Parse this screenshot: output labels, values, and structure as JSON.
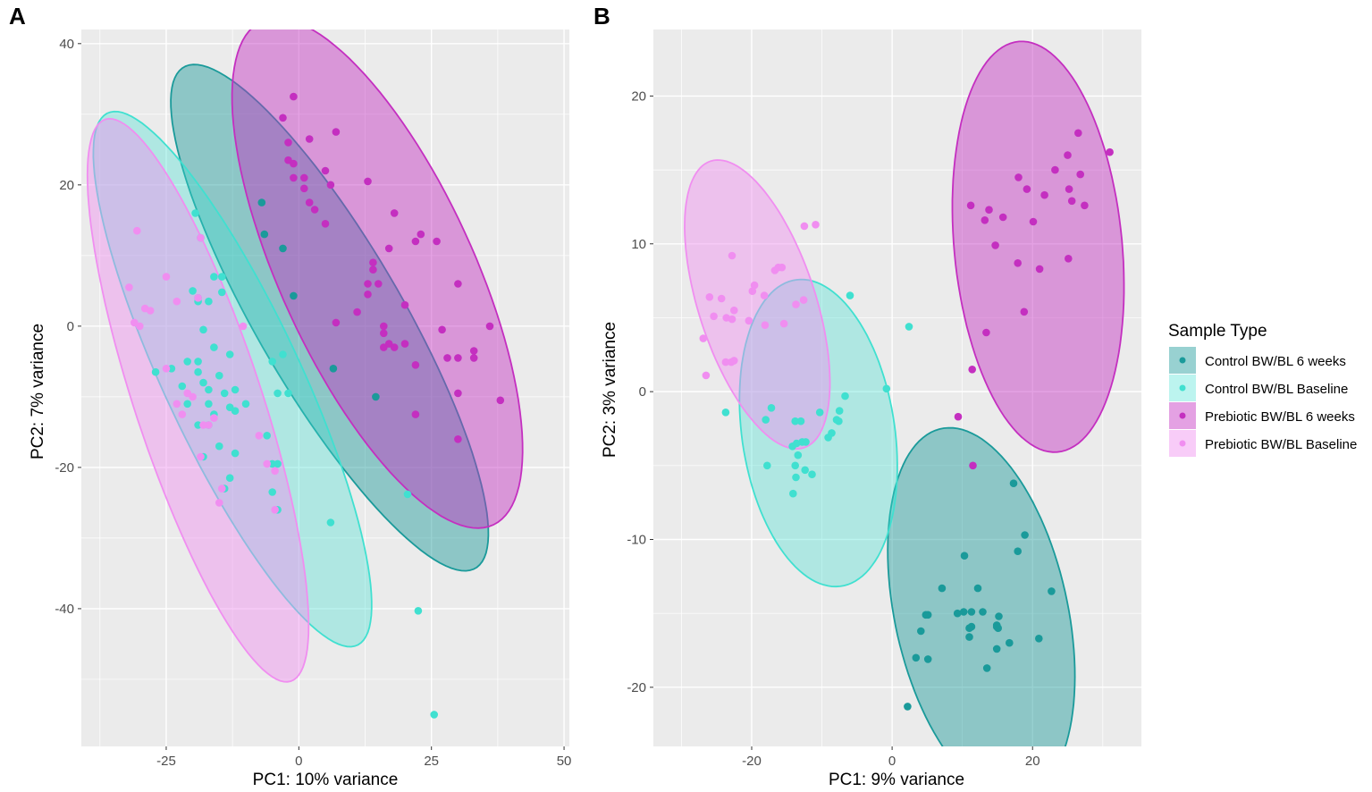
{
  "chart_data": [
    {
      "panel": "A",
      "type": "scatter",
      "xlabel": "PC1: 10% variance",
      "ylabel": "PC2: 7% variance",
      "xlim": [
        -41,
        51
      ],
      "ylim": [
        -59.5,
        42
      ],
      "xticks": [
        -25,
        0,
        25,
        50
      ],
      "yticks": [
        -40,
        -20,
        0,
        20,
        40
      ],
      "xtick_labels": [
        "-25",
        "0",
        "25",
        "50"
      ],
      "ytick_labels": [
        "-40",
        "-20",
        "0",
        "20",
        "40"
      ],
      "series": [
        {
          "name": "Control BW/BL 6 weeks",
          "color": "#1a9a9a",
          "ellipse": {
            "cx": 5.8,
            "cy": 1.2,
            "rx": 45,
            "ry": 12.5,
            "angle": -51
          },
          "points": [
            [
              -7,
              17.5
            ],
            [
              -6.5,
              13
            ],
            [
              -3,
              11
            ],
            [
              -1,
              4.3
            ],
            [
              6.5,
              -6
            ],
            [
              14.5,
              -10
            ]
          ]
        },
        {
          "name": "Control BW/BL Baseline",
          "color": "#40e0d0",
          "ellipse": {
            "cx": -12.5,
            "cy": -7.5,
            "rx": 44.5,
            "ry": 12,
            "angle": -57
          },
          "points": [
            [
              -19.5,
              16
            ],
            [
              -18.5,
              12.5
            ],
            [
              -16,
              7
            ],
            [
              -14.5,
              7
            ],
            [
              -14.5,
              4.8
            ],
            [
              -20,
              5
            ],
            [
              -19,
              4
            ],
            [
              -19,
              3.5
            ],
            [
              -17,
              3.5
            ],
            [
              -18,
              -0.5
            ],
            [
              -16,
              -3
            ],
            [
              -13,
              -4
            ],
            [
              -21,
              -5
            ],
            [
              -19,
              -5
            ],
            [
              -19,
              -6.5
            ],
            [
              -24,
              -6
            ],
            [
              -27,
              -6.5
            ],
            [
              -22,
              -8.5
            ],
            [
              -18,
              -8
            ],
            [
              -15,
              -7
            ],
            [
              -14,
              -9.5
            ],
            [
              -12,
              -9
            ],
            [
              -17,
              -9
            ],
            [
              -21,
              -11
            ],
            [
              -17,
              -11
            ],
            [
              -13,
              -11.5
            ],
            [
              -12,
              -12
            ],
            [
              -10,
              -11
            ],
            [
              -5,
              -5
            ],
            [
              -3,
              -4
            ],
            [
              -4,
              -9.5
            ],
            [
              -2,
              -9.5
            ],
            [
              -6,
              -15.5
            ],
            [
              -5,
              -19.5
            ],
            [
              -4,
              -19.5
            ],
            [
              -5,
              -23.5
            ],
            [
              -4,
              -26
            ],
            [
              -14,
              -23
            ],
            [
              -13,
              -21.5
            ],
            [
              -12,
              -18
            ],
            [
              -15,
              -17
            ],
            [
              -18,
              -18.5
            ],
            [
              -19,
              -14
            ],
            [
              -17,
              -14
            ],
            [
              -16,
              -12.5
            ],
            [
              20.5,
              -23.8
            ],
            [
              6,
              -27.8
            ],
            [
              22.5,
              -40.3
            ],
            [
              25.5,
              -55
            ]
          ]
        },
        {
          "name": "Prebiotic BW/BL 6 weeks",
          "color": "#c42fc0",
          "ellipse": {
            "cx": 14.8,
            "cy": 7.5,
            "rx": 42,
            "ry": 17,
            "angle": -56
          },
          "points": [
            [
              -1,
              32.5
            ],
            [
              -3,
              29.5
            ],
            [
              -2,
              26
            ],
            [
              2,
              26.5
            ],
            [
              7,
              27.5
            ],
            [
              -2,
              23.5
            ],
            [
              -1,
              23
            ],
            [
              1,
              21
            ],
            [
              5,
              22
            ],
            [
              -1,
              21
            ],
            [
              1,
              19.5
            ],
            [
              2,
              17.5
            ],
            [
              3,
              16.5
            ],
            [
              6,
              20
            ],
            [
              5,
              14.5
            ],
            [
              13,
              20.5
            ],
            [
              18,
              16
            ],
            [
              14,
              9
            ],
            [
              14,
              8
            ],
            [
              15,
              6
            ],
            [
              13,
              6
            ],
            [
              13,
              4.5
            ],
            [
              17,
              11
            ],
            [
              11,
              2
            ],
            [
              20,
              3
            ],
            [
              23,
              13
            ],
            [
              22,
              12
            ],
            [
              26,
              12
            ],
            [
              22,
              -5.5
            ],
            [
              16,
              -3
            ],
            [
              17,
              -2.5
            ],
            [
              20,
              -2.5
            ],
            [
              18,
              -3
            ],
            [
              16,
              0
            ],
            [
              16,
              -1
            ],
            [
              7,
              0.5
            ],
            [
              28,
              -4.5
            ],
            [
              30,
              6
            ],
            [
              27,
              -0.5
            ],
            [
              30,
              -4.5
            ],
            [
              33,
              -3.5
            ],
            [
              33,
              -4.5
            ],
            [
              36,
              0
            ],
            [
              38,
              -10.5
            ],
            [
              22,
              -12.5
            ],
            [
              30,
              -9.5
            ],
            [
              30,
              -16
            ]
          ]
        },
        {
          "name": "Prebiotic BW/BL Baseline",
          "color": "#f08ef0",
          "ellipse": {
            "cx": -19,
            "cy": -10.5,
            "rx": 43.5,
            "ry": 11.5,
            "angle": -65.5
          },
          "points": [
            [
              -30.5,
              13.5
            ],
            [
              -18.5,
              12.5
            ],
            [
              -32,
              5.5
            ],
            [
              -25,
              7
            ],
            [
              -23,
              3.5
            ],
            [
              -19,
              4
            ],
            [
              -29,
              2.5
            ],
            [
              -28,
              2.2
            ],
            [
              -31,
              0.5
            ],
            [
              -30,
              0
            ],
            [
              -10.5,
              0
            ],
            [
              -25,
              -6
            ],
            [
              -23,
              -11
            ],
            [
              -22,
              -12.5
            ],
            [
              -20,
              -10
            ],
            [
              -18.5,
              -18.5
            ],
            [
              -17,
              -14
            ],
            [
              -18,
              -14
            ],
            [
              -16,
              -13
            ],
            [
              -21,
              -9.5
            ],
            [
              -14.5,
              -23
            ],
            [
              -15,
              -25
            ],
            [
              -7.5,
              -15.5
            ],
            [
              -6,
              -19.5
            ],
            [
              -4.5,
              -20.5
            ],
            [
              -4.5,
              -26
            ]
          ]
        }
      ]
    },
    {
      "panel": "B",
      "type": "scatter",
      "xlabel": "PC1: 9% variance",
      "ylabel": "PC2: 3% variance",
      "xlim": [
        -34,
        35.5
      ],
      "ylim": [
        -24,
        24.5
      ],
      "xticks": [
        -20,
        0,
        20
      ],
      "yticks": [
        -20,
        -10,
        0,
        10,
        20
      ],
      "xtick_labels": [
        "-20",
        "0",
        "20"
      ],
      "ytick_labels": [
        "-20",
        "-10",
        "0",
        "10",
        "20"
      ],
      "series": [
        {
          "name": "Control BW/BL 6 weeks",
          "color": "#1a9a9a",
          "ellipse": {
            "cx": 12.7,
            "cy": -15,
            "rx": 15,
            "ry": 10.5,
            "angle": -40
          },
          "points": [
            [
              18.9,
              -9.7
            ],
            [
              17.9,
              -10.8
            ],
            [
              10.3,
              -11.1
            ],
            [
              7.1,
              -13.3
            ],
            [
              12.2,
              -13.3
            ],
            [
              22.7,
              -13.5
            ],
            [
              15.2,
              -15.2
            ],
            [
              5.1,
              -15.1
            ],
            [
              4.8,
              -15.1
            ],
            [
              9.3,
              -15.0
            ],
            [
              10.2,
              -14.9
            ],
            [
              11.3,
              -14.9
            ],
            [
              12.9,
              -14.9
            ],
            [
              14.9,
              -15.9
            ],
            [
              15.1,
              -16.0
            ],
            [
              11.0,
              -16.0
            ],
            [
              11.0,
              -16.6
            ],
            [
              4.1,
              -16.2
            ],
            [
              20.9,
              -16.7
            ],
            [
              16.7,
              -17.0
            ],
            [
              14.9,
              -17.4
            ],
            [
              3.4,
              -18.0
            ],
            [
              5.1,
              -18.1
            ],
            [
              13.5,
              -18.7
            ],
            [
              2.2,
              -21.3
            ],
            [
              17.3,
              -6.2
            ],
            [
              14.9,
              -15.8
            ],
            [
              11.3,
              -15.9
            ]
          ]
        },
        {
          "name": "Control BW/BL Baseline",
          "color": "#40e0d0",
          "ellipse": {
            "cx": -10.5,
            "cy": -2.8,
            "rx": 12,
            "ry": 9.5,
            "angle": -35
          },
          "points": [
            [
              -6.0,
              6.5
            ],
            [
              2.4,
              4.4
            ],
            [
              -0.8,
              0.2
            ],
            [
              -23.7,
              -1.4
            ],
            [
              -6.7,
              -0.3
            ],
            [
              -18.0,
              -1.9
            ],
            [
              -7.5,
              -1.3
            ],
            [
              -13.8,
              -2.0
            ],
            [
              -13.0,
              -2.0
            ],
            [
              -10.3,
              -1.4
            ],
            [
              -7.9,
              -1.9
            ],
            [
              -7.6,
              -2.0
            ],
            [
              -12.8,
              -3.4
            ],
            [
              -12.3,
              -3.4
            ],
            [
              -13.6,
              -3.5
            ],
            [
              -14.2,
              -3.7
            ],
            [
              -9.1,
              -3.1
            ],
            [
              -8.6,
              -2.8
            ],
            [
              -13.4,
              -4.3
            ],
            [
              -12.4,
              -5.3
            ],
            [
              -11.4,
              -5.6
            ],
            [
              -13.8,
              -5.0
            ],
            [
              -17.8,
              -5.0
            ],
            [
              -13.7,
              -5.8
            ],
            [
              -14.1,
              -6.9
            ],
            [
              -17.2,
              -1.1
            ]
          ]
        },
        {
          "name": "Prebiotic BW/BL 6 weeks",
          "color": "#c42fc0",
          "ellipse": {
            "cx": 20.8,
            "cy": 9.8,
            "rx": 14.5,
            "ry": 11.5,
            "angle": -62
          },
          "points": [
            [
              26.5,
              17.5
            ],
            [
              31.0,
              16.2
            ],
            [
              25.0,
              16.0
            ],
            [
              23.2,
              15.0
            ],
            [
              26.8,
              14.7
            ],
            [
              18.0,
              14.5
            ],
            [
              25.2,
              13.7
            ],
            [
              19.2,
              13.7
            ],
            [
              11.2,
              12.6
            ],
            [
              21.7,
              13.3
            ],
            [
              25.6,
              12.9
            ],
            [
              27.4,
              12.6
            ],
            [
              13.8,
              12.3
            ],
            [
              15.8,
              11.8
            ],
            [
              13.2,
              11.6
            ],
            [
              20.1,
              11.5
            ],
            [
              14.7,
              9.9
            ],
            [
              17.9,
              8.7
            ],
            [
              21.0,
              8.3
            ],
            [
              25.1,
              9.0
            ],
            [
              18.8,
              5.4
            ],
            [
              13.4,
              4.0
            ],
            [
              11.4,
              1.5
            ],
            [
              9.4,
              -1.7
            ],
            [
              11.5,
              -5.0
            ]
          ]
        },
        {
          "name": "Prebiotic BW/BL Baseline",
          "color": "#f08ef0",
          "ellipse": {
            "cx": -19.2,
            "cy": 5.9,
            "rx": 12.5,
            "ry": 6.8,
            "angle": -42
          },
          "points": [
            [
              -12.5,
              11.2
            ],
            [
              -10.9,
              11.3
            ],
            [
              -22.8,
              9.2
            ],
            [
              -16.2,
              8.4
            ],
            [
              -15.7,
              8.4
            ],
            [
              -16.7,
              8.2
            ],
            [
              -19.6,
              7.2
            ],
            [
              -19.9,
              6.8
            ],
            [
              -18.2,
              6.5
            ],
            [
              -26.0,
              6.4
            ],
            [
              -24.3,
              6.3
            ],
            [
              -22.5,
              5.5
            ],
            [
              -13.7,
              5.9
            ],
            [
              -12.6,
              6.2
            ],
            [
              -25.4,
              5.1
            ],
            [
              -23.6,
              5.0
            ],
            [
              -22.8,
              4.9
            ],
            [
              -20.4,
              4.8
            ],
            [
              -15.4,
              4.6
            ],
            [
              -18.1,
              4.5
            ],
            [
              -26.9,
              3.6
            ],
            [
              -23.7,
              2.0
            ],
            [
              -22.9,
              2.0
            ],
            [
              -22.5,
              2.1
            ],
            [
              -26.5,
              1.1
            ]
          ]
        }
      ]
    }
  ],
  "panels": {
    "a": {
      "letter": "A",
      "xlabel": "PC1: 10% variance",
      "ylabel": "PC2: 7% variance"
    },
    "b": {
      "letter": "B",
      "xlabel": "PC1: 9% variance",
      "ylabel": "PC2: 3% variance"
    }
  },
  "legend": {
    "title": "Sample Type",
    "items": [
      {
        "label": "Control BW/BL 6 weeks",
        "color": "#1a9a9a"
      },
      {
        "label": "Control BW/BL Baseline",
        "color": "#40e0d0"
      },
      {
        "label": "Prebiotic BW/BL 6 weeks",
        "color": "#c42fc0"
      },
      {
        "label": "Prebiotic BW/BL Baseline",
        "color": "#f08ef0"
      }
    ]
  },
  "style": {
    "panel_bg": "#ebebeb",
    "grid": "#ffffff"
  }
}
